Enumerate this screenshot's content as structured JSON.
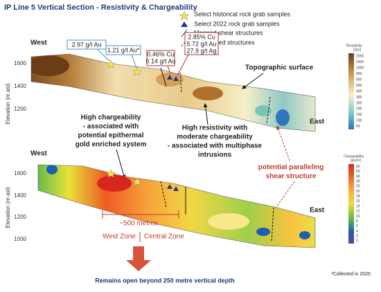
{
  "header": {
    "title": "IP Line 5 Vertical Section - Resistivity & Chargeability"
  },
  "legend": [
    "Select historical rock grab samples",
    "Select 2022 rock grab samples",
    "Mapped shear structures",
    "Interpreted structures"
  ],
  "upper": {
    "west": "West",
    "east": "East",
    "ylabel": "Elevation (m asl)",
    "yticks": [
      "1600",
      "1400",
      "1200"
    ],
    "samples": [
      [
        "2.97 g/t Au"
      ],
      [
        "1.21 g/t Au*"
      ],
      [
        "0.46% Cu",
        "0.14 g/t Au"
      ],
      [
        "2.85% Cu",
        "5.72 g/t Au",
        "27.9 g/t Ag"
      ]
    ],
    "topo": "Topographic surface",
    "scale_title": "Resistivity",
    "scale_unit": "(Ωm)",
    "scale": [
      "2000",
      "1500",
      "1000",
      "800",
      "600",
      "500",
      "400",
      "300",
      "250",
      "200",
      "150",
      "100",
      "60"
    ]
  },
  "lower": {
    "west": "West",
    "east": "East",
    "ylabel": "Elevation (m asl)",
    "yticks": [
      "1600",
      "1400",
      "1200",
      "1000"
    ],
    "scale_title": "Chargeability",
    "scale_unit": "(mV/V)",
    "scale": [
      "60",
      "50",
      "40",
      "30",
      "25",
      "20",
      "18",
      "16",
      "14",
      "12",
      "10",
      "8",
      "6",
      "4",
      "2",
      "0"
    ],
    "distance": "~500 metres",
    "west_zone": "West Zone",
    "central_zone": "Central Zone"
  },
  "notes": {
    "chargeability": [
      "High chargeability",
      "- associated with",
      "potential epithermal",
      "gold enriched system"
    ],
    "resistivity": [
      "High resistivity with",
      "moderate chargeability",
      "- associated with multiphase",
      "intrusions"
    ],
    "shear": [
      "potential paralleling",
      "shear structure"
    ],
    "open": "Remains open beyond 250 metre vertical depth",
    "footnote": "*Collected in 2020"
  }
}
